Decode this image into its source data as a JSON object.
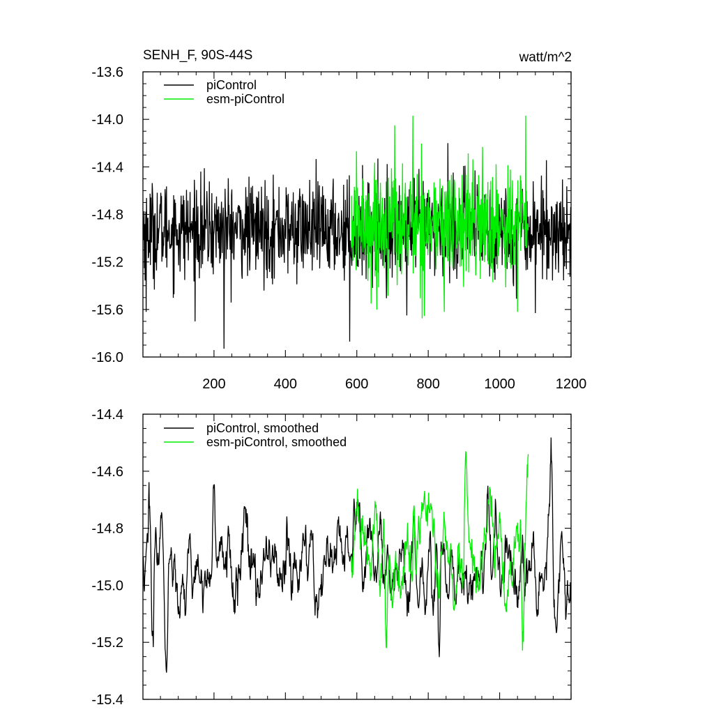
{
  "chart_data": [
    {
      "type": "line",
      "title": "SENH_F, 90S-44S",
      "units": "watt/m^2",
      "xlim": [
        1,
        1200
      ],
      "ylim": [
        -16.0,
        -13.6
      ],
      "x_ticks": [
        200,
        400,
        600,
        800,
        1000,
        1200
      ],
      "x_tick_labels": [
        "200",
        "400",
        "600",
        "800",
        "1000",
        "1200"
      ],
      "y_ticks": [
        -13.6,
        -14.0,
        -14.4,
        -14.8,
        -15.2,
        -15.6,
        -16.0
      ],
      "y_tick_labels": [
        "-13.6",
        "-14.0",
        "-14.4",
        "-14.8",
        "-15.2",
        "-15.6",
        "-16.0"
      ],
      "grid": false,
      "legend_position": "top-left",
      "series": [
        {
          "name": "piControl",
          "color": "#000000",
          "x_range": [
            1,
            1200
          ],
          "mean": -14.93,
          "std": 0.2,
          "notable_points": [
            [
              228,
              -15.93
            ],
            [
              580,
              -15.87
            ],
            [
              147,
              -15.7
            ],
            [
              10,
              -15.62
            ],
            [
              855,
              -14.2
            ],
            [
              1100,
              -15.63
            ],
            [
              740,
              -15.65
            ]
          ]
        },
        {
          "name": "esm-piControl",
          "color": "#00ee00",
          "x_range": [
            585,
            1080
          ],
          "mean": -14.88,
          "std": 0.24,
          "notable_points": [
            [
              757,
              -13.97
            ],
            [
              1073,
              -13.97
            ],
            [
              706,
              -14.05
            ],
            [
              845,
              -15.62
            ],
            [
              1050,
              -15.62
            ],
            [
              640,
              -15.55
            ]
          ]
        }
      ]
    },
    {
      "type": "line",
      "title": "",
      "ylim": [
        -15.4,
        -14.4
      ],
      "xlim": [
        1,
        1200
      ],
      "x_ticks": [
        200,
        400,
        600,
        800,
        1000,
        1200
      ],
      "y_ticks": [
        -14.4,
        -14.6,
        -14.8,
        -15.0,
        -15.2,
        -15.4
      ],
      "y_tick_labels": [
        "-14.4",
        "-14.6",
        "-14.8",
        "-15.0",
        "-15.2",
        "-15.4"
      ],
      "grid": false,
      "legend_position": "top-left",
      "series": [
        {
          "name": "piControl, smoothed",
          "color": "#000000",
          "x_range": [
            1,
            1200
          ],
          "mean": -14.93,
          "std": 0.09,
          "notable_points": [
            [
              68,
              -15.28
            ],
            [
              200,
              -14.66
            ],
            [
              1145,
              -14.56
            ],
            [
              830,
              -15.22
            ],
            [
              28,
              -15.16
            ]
          ]
        },
        {
          "name": "esm-piControl, smoothed",
          "color": "#00ee00",
          "x_range": [
            585,
            1080
          ],
          "mean": -14.88,
          "std": 0.1,
          "notable_points": [
            [
              905,
              -14.53
            ],
            [
              1080,
              -14.54
            ],
            [
              683,
              -15.22
            ],
            [
              1065,
              -15.16
            ],
            [
              760,
              -14.72
            ]
          ]
        }
      ]
    }
  ]
}
